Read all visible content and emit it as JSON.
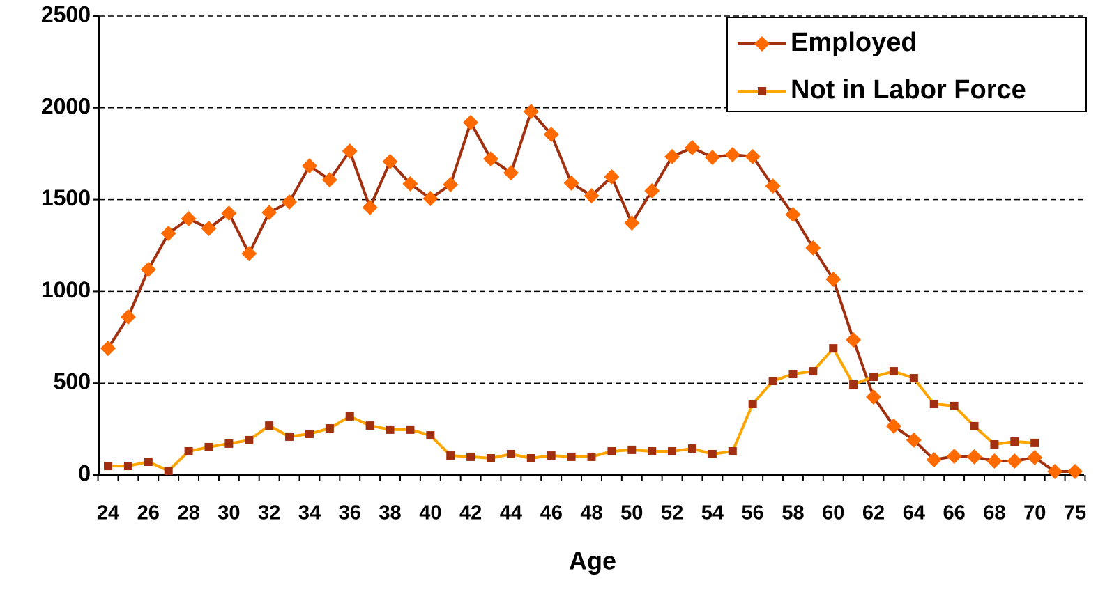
{
  "chart_data": {
    "type": "line",
    "x_label": "Age",
    "categories": [
      "24",
      null,
      "26",
      null,
      "28",
      null,
      "30",
      null,
      "32",
      null,
      "34",
      null,
      "36",
      null,
      "38",
      null,
      "40",
      null,
      "42",
      null,
      "44",
      null,
      "46",
      null,
      "48",
      null,
      "50",
      null,
      "52",
      null,
      "54",
      null,
      "56",
      null,
      "58",
      null,
      "60",
      null,
      "62",
      null,
      "64",
      null,
      "66",
      null,
      "68",
      null,
      "70",
      null,
      "75"
    ],
    "series": [
      {
        "name": "Employed",
        "color": "#a03010",
        "marker_color": "#ff6a00",
        "marker": "diamond",
        "values": [
          690,
          861,
          1119,
          1316,
          1396,
          1343,
          1426,
          1206,
          1430,
          1487,
          1684,
          1608,
          1764,
          1457,
          1707,
          1586,
          1506,
          1582,
          1920,
          1722,
          1646,
          1980,
          1855,
          1590,
          1521,
          1624,
          1373,
          1548,
          1734,
          1783,
          1730,
          1745,
          1734,
          1574,
          1419,
          1237,
          1066,
          736,
          425,
          266,
          190,
          83,
          102,
          99,
          76,
          76,
          95,
          19,
          19
        ]
      },
      {
        "name": "Not in Labor Force",
        "color": "#ffa500",
        "marker_color": "#a03010",
        "marker": "square",
        "values": [
          49,
          49,
          72,
          23,
          129,
          152,
          171,
          190,
          269,
          209,
          224,
          254,
          319,
          269,
          247,
          247,
          216,
          106,
          99,
          91,
          114,
          91,
          106,
          99,
          99,
          129,
          137,
          129,
          129,
          144,
          114,
          129,
          387,
          512,
          550,
          565,
          690,
          493,
          535,
          565,
          527,
          387,
          376,
          266,
          167,
          182,
          175,
          null,
          null
        ]
      }
    ],
    "ylim": [
      0,
      2500
    ],
    "yticks": [
      0,
      500,
      1000,
      1500,
      2000,
      2500
    ],
    "grid": true,
    "legend": "top-right"
  }
}
